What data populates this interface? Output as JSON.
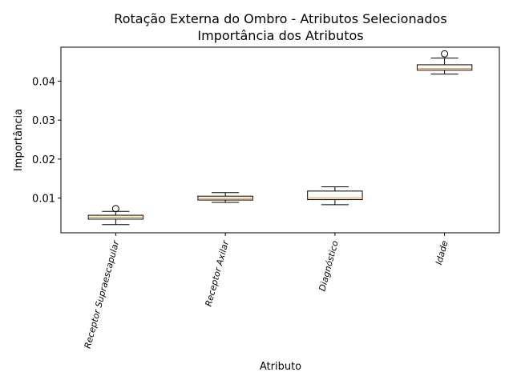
{
  "chart_data": {
    "type": "box",
    "title_line1": "Rotação Externa do Ombro - Atributos Selecionados",
    "title_line2": "Importância dos Atributos",
    "xlabel": "Atributo",
    "ylabel": "Importância",
    "categories": [
      "Receptor Supraescapular",
      "Receptor Axilar",
      "Diagnóstico",
      "Idade"
    ],
    "boxes": [
      {
        "whisker_low": 0.0032,
        "q1": 0.0046,
        "median": 0.0051,
        "q3": 0.0056,
        "whisker_high": 0.0066,
        "outliers": [
          0.0073
        ]
      },
      {
        "whisker_low": 0.0089,
        "q1": 0.0095,
        "median": 0.0099,
        "q3": 0.0105,
        "whisker_high": 0.0114,
        "outliers": []
      },
      {
        "whisker_low": 0.0083,
        "q1": 0.0096,
        "median": 0.01,
        "q3": 0.0118,
        "whisker_high": 0.0129,
        "outliers": []
      },
      {
        "whisker_low": 0.0418,
        "q1": 0.0428,
        "median": 0.0432,
        "q3": 0.0442,
        "whisker_high": 0.0459,
        "outliers": [
          0.047
        ]
      }
    ],
    "yticks": [
      0.01,
      0.02,
      0.03,
      0.04
    ],
    "ytick_labels": [
      "0.01",
      "0.02",
      "0.03",
      "0.04"
    ],
    "ylim": [
      0.0011,
      0.0487
    ],
    "grid": false,
    "box_color": "#000000",
    "median_color": "#ff7f0e",
    "category_label_rotation": -75
  }
}
